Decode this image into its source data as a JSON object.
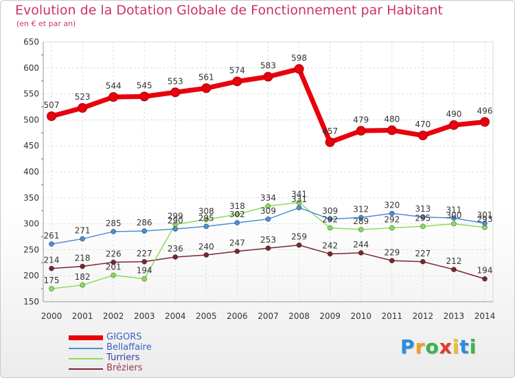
{
  "chart_data": {
    "type": "line",
    "title": "Evolution de la Dotation Globale de Fonctionnement par Habitant",
    "subtitle": "(en € et par an)",
    "xlabel": "",
    "ylabel": "",
    "x": [
      "2000",
      "2001",
      "2002",
      "2003",
      "2004",
      "2005",
      "2006",
      "2007",
      "2008",
      "2009",
      "2010",
      "2011",
      "2012",
      "2013",
      "2014"
    ],
    "ylim": [
      150,
      650
    ],
    "yticks": [
      150,
      200,
      250,
      300,
      350,
      400,
      450,
      500,
      550,
      600,
      650
    ],
    "legend_position": "bottom-left",
    "series": [
      {
        "name": "GIGORS",
        "color": "#e8000c",
        "values": [
          507,
          523,
          544,
          545,
          553,
          561,
          574,
          583,
          598,
          457,
          479,
          480,
          470,
          490,
          496
        ]
      },
      {
        "name": "Bellaffaire",
        "color": "#4a8fd4",
        "values": [
          261,
          271,
          285,
          286,
          290,
          295,
          302,
          309,
          331,
          309,
          312,
          320,
          313,
          311,
          301
        ]
      },
      {
        "name": "Turriers",
        "color": "#88dd55",
        "values": [
          175,
          182,
          201,
          194,
          299,
          308,
          318,
          334,
          341,
          292,
          289,
          292,
          295,
          300,
          293
        ]
      },
      {
        "name": "Bréziers",
        "color": "#7a2530",
        "values": [
          214,
          218,
          226,
          227,
          236,
          240,
          247,
          253,
          259,
          242,
          244,
          229,
          227,
          212,
          194
        ]
      }
    ]
  },
  "logo": {
    "letters": [
      "P",
      "r",
      "o",
      "x",
      "i",
      "t",
      "i"
    ],
    "colors": [
      "#2a8de0",
      "#f0a020",
      "#3bb54a",
      "#e03a2a",
      "#f0c020",
      "#2a8de0",
      "#3bb54a"
    ]
  }
}
